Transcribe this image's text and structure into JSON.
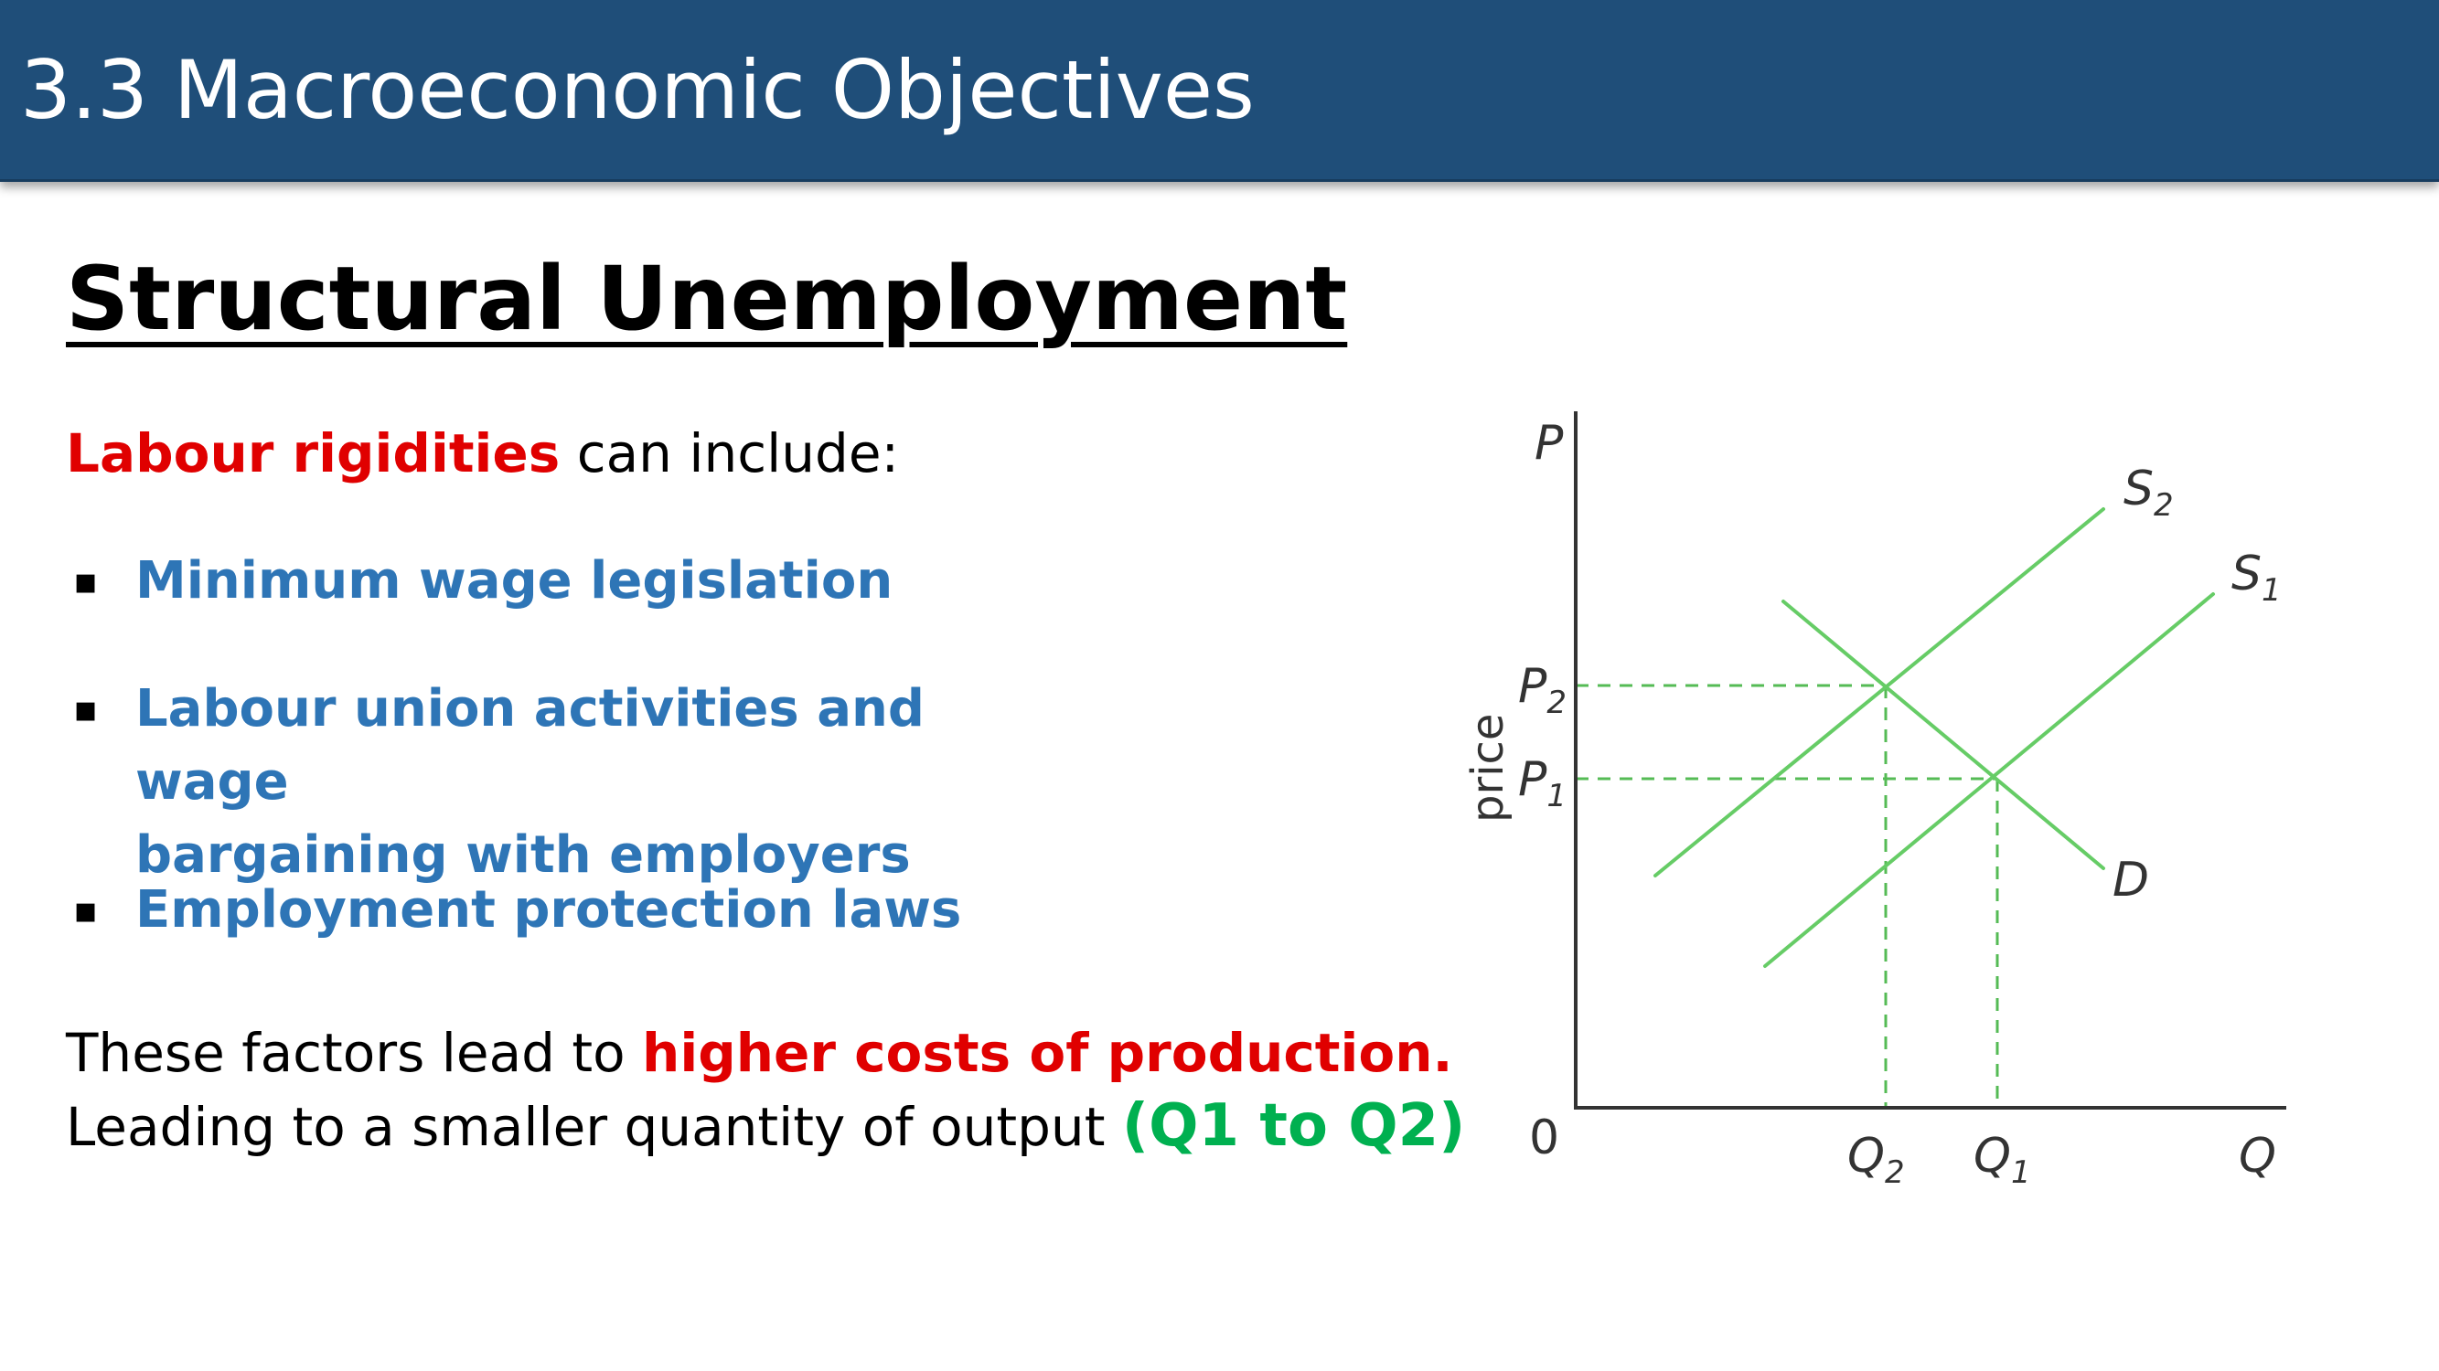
{
  "slide": {
    "title": "3.3 Macroeconomic Objectives",
    "heading": "Structural Unemployment",
    "intro": {
      "highlight": "Labour rigidities",
      "rest": " can include:"
    },
    "bullets": [
      {
        "marker": "▪",
        "lines": [
          "Minimum wage legislation"
        ]
      },
      {
        "marker": "▪",
        "lines": [
          "Labour union activities and wage",
          "bargaining with employers"
        ]
      },
      {
        "marker": "▪",
        "lines": [
          "Employment protection laws"
        ]
      }
    ],
    "conclusion": {
      "line1_plain": "These factors lead to ",
      "line1_highlight": "higher costs of production.",
      "line2_plain": "Leading to a smaller quantity of output ",
      "line2_highlight": "(Q1 to Q2)"
    }
  },
  "diagram": {
    "colors": {
      "curve": "#66cc66",
      "axis": "#333333",
      "guide": "#55bb55",
      "text": "#333333"
    },
    "axes": {
      "y_label": "P",
      "x_label": "Q",
      "origin_label": "0",
      "y_title": "price"
    },
    "curves": [
      {
        "id": "S2",
        "label": "S",
        "sub": "2"
      },
      {
        "id": "S1",
        "label": "S",
        "sub": "1"
      },
      {
        "id": "D",
        "label": "D",
        "sub": ""
      }
    ],
    "points": [
      {
        "id": "P2",
        "label": "P",
        "sub": "2"
      },
      {
        "id": "P1",
        "label": "P",
        "sub": "1"
      },
      {
        "id": "Q2",
        "label": "Q",
        "sub": "2"
      },
      {
        "id": "Q1",
        "label": "Q",
        "sub": "1"
      }
    ]
  }
}
